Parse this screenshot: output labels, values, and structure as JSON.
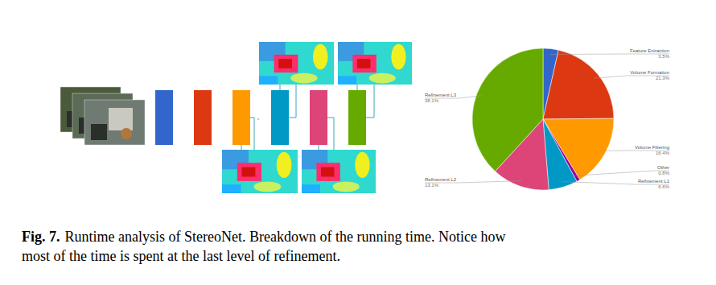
{
  "chart_data": {
    "type": "pie",
    "categories": [
      "Feature Extraction",
      "Volume Formation",
      "Volume Filtering",
      "Other",
      "Refinement L1",
      "Refinement L2",
      "Refinement L3"
    ],
    "values": [
      3.5,
      21.3,
      16.4,
      0.8,
      6.6,
      13.1,
      38.1
    ],
    "value_labels": [
      "3.5%",
      "21.3%",
      "16.4%",
      "0.8%",
      "6.6%",
      "13.1%",
      "38.1%"
    ],
    "colors": [
      "#3366cc",
      "#dc3912",
      "#ff9900",
      "#990099",
      "#0099c6",
      "#dd4477",
      "#66aa00"
    ],
    "data_labels": true
  },
  "caption": {
    "label": "Fig. 7.",
    "lines": [
      "Runtime analysis of StereoNet. Breakdown of the running time. Notice how",
      "most of the time is spent at the last level of refinement."
    ]
  }
}
